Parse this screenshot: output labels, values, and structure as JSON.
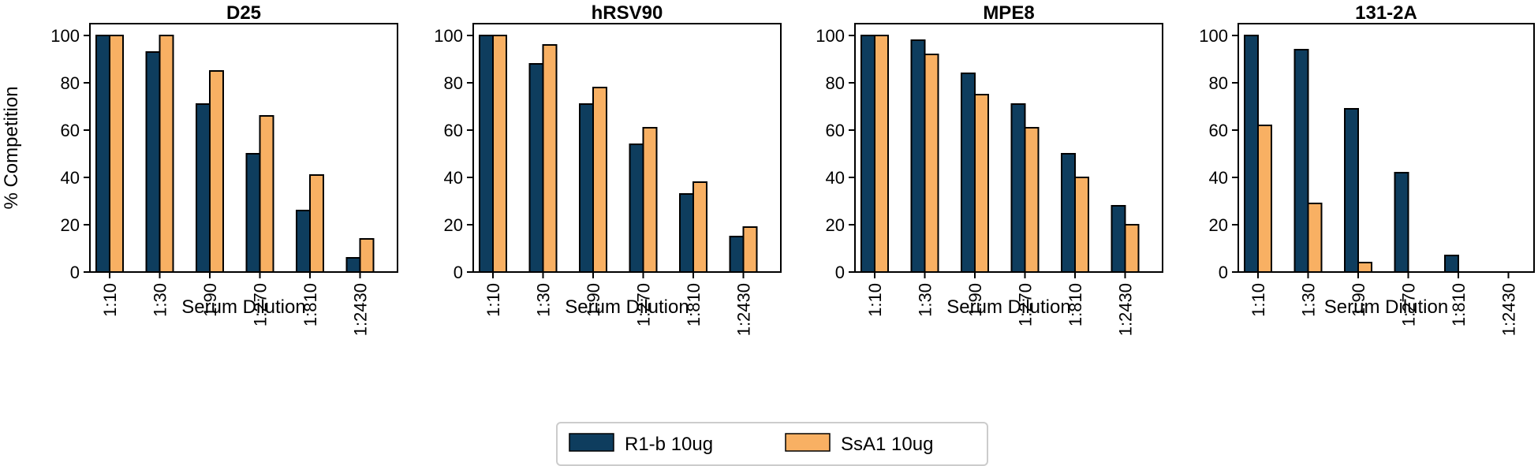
{
  "chart_data": [
    {
      "type": "bar",
      "title": "D25",
      "xlabel": "Serum Dilution",
      "ylabel": "% Competition",
      "ylim": [
        0,
        105
      ],
      "yticks": [
        0,
        20,
        40,
        60,
        80,
        100
      ],
      "categories": [
        "1:10",
        "1:30",
        "1:90",
        "1:270",
        "1:810",
        "1:2430"
      ],
      "series": [
        {
          "name": "R1-b 10ug",
          "values": [
            100,
            93,
            71,
            50,
            26,
            6
          ]
        },
        {
          "name": "SsA1 10ug",
          "values": [
            100,
            100,
            85,
            66,
            41,
            14
          ]
        }
      ]
    },
    {
      "type": "bar",
      "title": "hRSV90",
      "xlabel": "Serum Dilution",
      "ylabel": "",
      "ylim": [
        0,
        105
      ],
      "yticks": [
        0,
        20,
        40,
        60,
        80,
        100
      ],
      "categories": [
        "1:10",
        "1:30",
        "1:90",
        "1:270",
        "1:810",
        "1:2430"
      ],
      "series": [
        {
          "name": "R1-b 10ug",
          "values": [
            100,
            88,
            71,
            54,
            33,
            15
          ]
        },
        {
          "name": "SsA1 10ug",
          "values": [
            100,
            96,
            78,
            61,
            38,
            19
          ]
        }
      ]
    },
    {
      "type": "bar",
      "title": "MPE8",
      "xlabel": "Serum Dilution",
      "ylabel": "",
      "ylim": [
        0,
        105
      ],
      "yticks": [
        0,
        20,
        40,
        60,
        80,
        100
      ],
      "categories": [
        "1:10",
        "1:30",
        "1:90",
        "1:270",
        "1:810",
        "1:2430"
      ],
      "series": [
        {
          "name": "R1-b 10ug",
          "values": [
            100,
            98,
            84,
            71,
            50,
            28
          ]
        },
        {
          "name": "SsA1 10ug",
          "values": [
            100,
            92,
            75,
            61,
            40,
            20
          ]
        }
      ]
    },
    {
      "type": "bar",
      "title": "131-2A",
      "xlabel": "Serum Dilution",
      "ylabel": "",
      "ylim": [
        0,
        105
      ],
      "yticks": [
        0,
        20,
        40,
        60,
        80,
        100
      ],
      "categories": [
        "1:10",
        "1:30",
        "1:90",
        "1:270",
        "1:810",
        "1:2430"
      ],
      "series": [
        {
          "name": "R1-b 10ug",
          "values": [
            100,
            94,
            69,
            42,
            7,
            0
          ]
        },
        {
          "name": "SsA1 10ug",
          "values": [
            62,
            29,
            4,
            0,
            0,
            0
          ]
        }
      ]
    }
  ],
  "legend": {
    "placement": "bottom-center",
    "items": [
      {
        "label": "R1-b 10ug",
        "color": "#0e3d5e"
      },
      {
        "label": "SsA1 10ug",
        "color": "#f8b063"
      }
    ]
  }
}
